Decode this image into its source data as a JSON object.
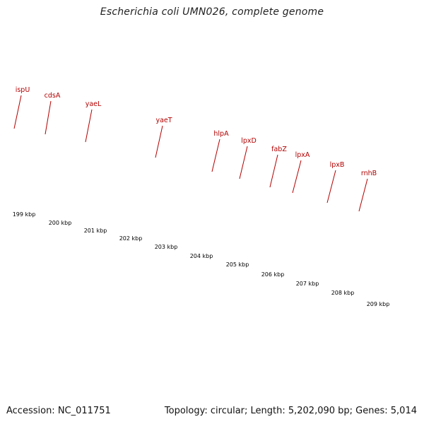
{
  "title": "Escherichia coli UMN026, complete genome",
  "footer": {
    "accession": "Accession: NC_011751",
    "summary": "Topology: circular; Length: 5,202,090 bp; Genes: 5,014"
  },
  "colors": {
    "cog_purple": "#6f5fd6",
    "cog_olive": "#6d8c23",
    "cog_magenta": "#ee1199",
    "cds_red": "#ee0000",
    "backbone": "#808080",
    "tick_green": "#228822",
    "label_red": "#b30000"
  },
  "genes": [
    {
      "name": "ispU"
    },
    {
      "name": "cdsA"
    },
    {
      "name": "yaeL"
    },
    {
      "name": "yaeT"
    },
    {
      "name": "hlpA"
    },
    {
      "name": "lpxD"
    },
    {
      "name": "fabZ"
    },
    {
      "name": "lpxA"
    },
    {
      "name": "lpxB"
    },
    {
      "name": "rnhB"
    }
  ],
  "scale": [
    {
      "label": "199 kbp"
    },
    {
      "label": "200 kbp"
    },
    {
      "label": "201 kbp"
    },
    {
      "label": "202 kbp"
    },
    {
      "label": "203 kbp"
    },
    {
      "label": "204 kbp"
    },
    {
      "label": "205 kbp"
    },
    {
      "label": "206 kbp"
    },
    {
      "label": "207 kbp"
    },
    {
      "label": "208 kbp"
    },
    {
      "label": "209 kbp"
    }
  ]
}
